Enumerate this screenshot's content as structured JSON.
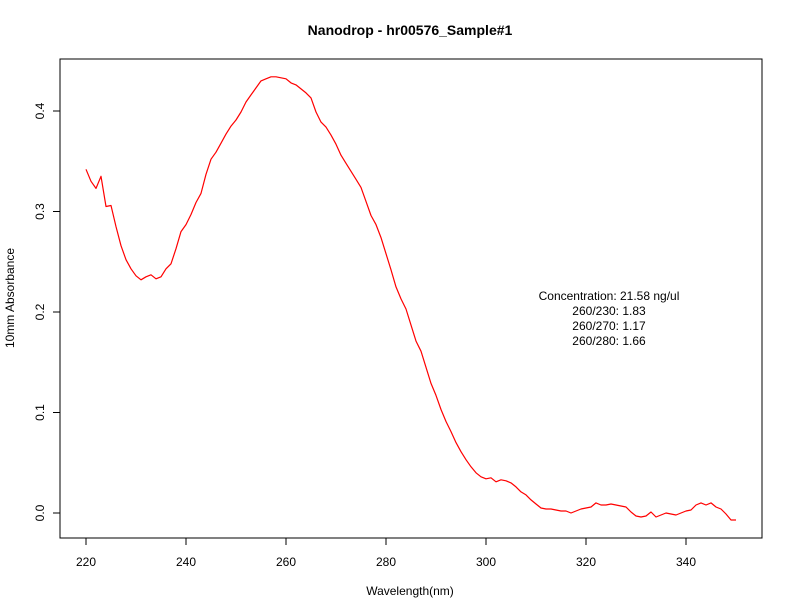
{
  "chart_data": {
    "type": "line",
    "title": "Nanodrop - hr00576_Sample#1",
    "xlabel": "Wavelength(nm)",
    "ylabel": "10mm Absorbance",
    "xlim": [
      220,
      350
    ],
    "ylim": [
      0.0,
      0.43
    ],
    "x_ticks": [
      220,
      240,
      260,
      280,
      300,
      320,
      340
    ],
    "y_ticks": [
      0.0,
      0.1,
      0.2,
      0.3,
      0.4
    ],
    "x_tick_labels": [
      "220",
      "240",
      "260",
      "280",
      "300",
      "320",
      "340"
    ],
    "y_tick_labels": [
      "0.0",
      "0.1",
      "0.2",
      "0.3",
      "0.4"
    ],
    "grid": false,
    "series": [
      {
        "color": "#ff0000",
        "x": [
          220,
          221,
          222,
          223,
          224,
          225,
          226,
          227,
          228,
          229,
          230,
          231,
          232,
          233,
          234,
          235,
          236,
          237,
          238,
          239,
          240,
          241,
          242,
          243,
          244,
          245,
          246,
          247,
          248,
          249,
          250,
          251,
          252,
          253,
          254,
          255,
          256,
          257,
          258,
          259,
          260,
          261,
          262,
          263,
          264,
          265,
          266,
          267,
          268,
          269,
          270,
          271,
          272,
          273,
          274,
          275,
          276,
          277,
          278,
          279,
          280,
          281,
          282,
          283,
          284,
          285,
          286,
          287,
          288,
          289,
          290,
          291,
          292,
          293,
          294,
          295,
          296,
          297,
          298,
          299,
          300,
          301,
          302,
          303,
          304,
          305,
          306,
          307,
          308,
          309,
          310,
          311,
          312,
          313,
          314,
          315,
          316,
          317,
          318,
          319,
          320,
          321,
          322,
          323,
          324,
          325,
          326,
          327,
          328,
          329,
          330,
          331,
          332,
          333,
          334,
          335,
          336,
          337,
          338,
          339,
          340,
          341,
          342,
          343,
          344,
          345,
          346,
          347,
          348,
          349,
          350
        ],
        "y": [
          0.342,
          0.33,
          0.323,
          0.335,
          0.305,
          0.306,
          0.285,
          0.266,
          0.252,
          0.243,
          0.236,
          0.232,
          0.235,
          0.237,
          0.233,
          0.235,
          0.243,
          0.248,
          0.263,
          0.28,
          0.287,
          0.297,
          0.309,
          0.318,
          0.337,
          0.352,
          0.359,
          0.368,
          0.377,
          0.385,
          0.391,
          0.399,
          0.409,
          0.416,
          0.423,
          0.43,
          0.432,
          0.434,
          0.434,
          0.433,
          0.432,
          0.428,
          0.426,
          0.422,
          0.418,
          0.413,
          0.399,
          0.389,
          0.384,
          0.376,
          0.367,
          0.356,
          0.348,
          0.34,
          0.332,
          0.324,
          0.31,
          0.296,
          0.287,
          0.274,
          0.258,
          0.242,
          0.225,
          0.213,
          0.203,
          0.187,
          0.171,
          0.161,
          0.145,
          0.129,
          0.117,
          0.103,
          0.091,
          0.081,
          0.07,
          0.061,
          0.053,
          0.046,
          0.04,
          0.036,
          0.034,
          0.035,
          0.031,
          0.033,
          0.032,
          0.03,
          0.026,
          0.021,
          0.018,
          0.013,
          0.009,
          0.005,
          0.004,
          0.004,
          0.003,
          0.002,
          0.002,
          0.0,
          0.002,
          0.004,
          0.005,
          0.006,
          0.01,
          0.008,
          0.008,
          0.009,
          0.008,
          0.007,
          0.006,
          0.001,
          -0.003,
          -0.004,
          -0.003,
          0.001,
          -0.004,
          -0.002,
          0.0,
          -0.001,
          -0.002,
          0.0,
          0.002,
          0.003,
          0.008,
          0.01,
          0.008,
          0.01,
          0.006,
          0.004,
          -0.001,
          -0.007,
          -0.007
        ]
      }
    ],
    "annotations": [
      "Concentration: 21.58 ng/ul",
      "260/230: 1.83",
      "260/270: 1.17",
      "260/280: 1.66"
    ]
  }
}
